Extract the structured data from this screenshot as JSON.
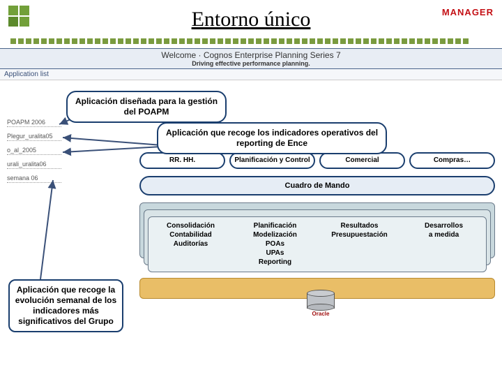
{
  "header": {
    "title": "Entorno único",
    "logo_right": "MANAGER",
    "logo_left_colors": [
      "#72a03a",
      "#5c8a2c"
    ]
  },
  "screenshot_bar": {
    "welcome": "Welcome · Cognos Enterprise Planning Series 7",
    "tagline": "Driving effective performance planning.",
    "app_list_label": "Application list"
  },
  "left_list": [
    "POAPM 2006",
    "Plegur_uralita05",
    "o_al_2005",
    "urali_uralita06",
    "semana 06"
  ],
  "callouts": {
    "c1": "Aplicación diseñada para la gestión del POAPM",
    "c2": "Aplicación que recoge los indicadores operativos del reporting de Ence",
    "c3": "Aplicación que recoge la evolución semanal de los indicadores más significativos del Grupo"
  },
  "diagram": {
    "top_pills": [
      "RR. HH.",
      "Planificación y Control",
      "Comercial",
      "Compras…"
    ],
    "cuadro": "Cuadro de Mando",
    "front_cols": [
      "Consolidación\nContabilidad\nAuditorías",
      "Planificación\nModelización\nPOAs\nUPAs\nReporting",
      "Resultados\nPresupuestación",
      "Desarrollos\na medida"
    ],
    "db_label": "Oracle",
    "colors": {
      "pill_border": "#1a3e6e",
      "cuadro_bg": "#e6edf5",
      "layer_back": "#c8d8dd",
      "layer_mid": "#d9e4e7",
      "layer_front": "#eaf1f3",
      "base": "#e9be67",
      "arrow": "#3a5078"
    }
  }
}
